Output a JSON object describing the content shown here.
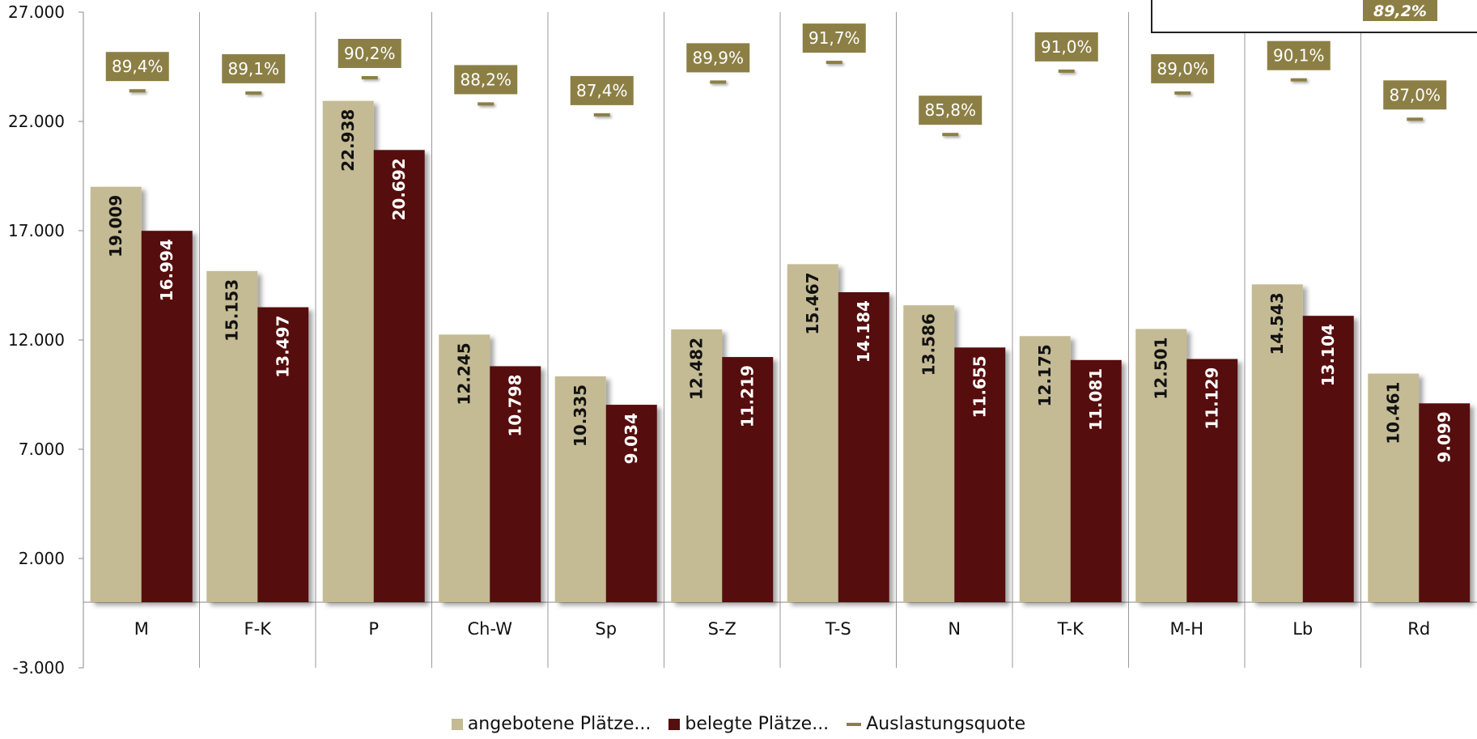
{
  "chart_data": {
    "type": "bar",
    "ylim": [
      -3000,
      27000
    ],
    "yticks": [
      -3000,
      2000,
      7000,
      12000,
      17000,
      22000,
      27000
    ],
    "ytick_labels": [
      "-3.000",
      "2.000",
      "7.000",
      "12.000",
      "17.000",
      "22.000",
      "27.000"
    ],
    "categories": [
      "M",
      "F-K",
      "P",
      "Ch-W",
      "Sp",
      "S-Z",
      "T-S",
      "N",
      "T-K",
      "M-H",
      "Lb",
      "Rd"
    ],
    "series": [
      {
        "name": "angebotene Plätze...",
        "type": "bar",
        "color": "#c4ba94",
        "values": [
          19009,
          15153,
          22938,
          12245,
          10335,
          12482,
          15467,
          13586,
          12175,
          12501,
          14543,
          10461
        ],
        "labels": [
          "19.009",
          "15.153",
          "22.938",
          "12.245",
          "10.335",
          "12.482",
          "15.467",
          "13.586",
          "12.175",
          "12.501",
          "14.543",
          "10.461"
        ]
      },
      {
        "name": "belegte Plätze...",
        "type": "bar",
        "color": "#560f0e",
        "values": [
          16994,
          13497,
          20692,
          10798,
          9034,
          11219,
          14184,
          11655,
          11081,
          11129,
          13104,
          9099
        ],
        "labels": [
          "16.994",
          "13.497",
          "20.692",
          "10.798",
          "9.034",
          "11.219",
          "14.184",
          "11.655",
          "11.081",
          "11.129",
          "13.104",
          "9.099"
        ]
      },
      {
        "name": "Auslastungsquote",
        "type": "line-marker",
        "color": "#8c7f45",
        "values": [
          89.4,
          89.1,
          90.2,
          88.2,
          87.4,
          89.9,
          91.7,
          85.8,
          91.0,
          89.0,
          90.1,
          87.0
        ],
        "labels": [
          "89,4%",
          "89,1%",
          "90,2%",
          "88,2%",
          "87,4%",
          "89,9%",
          "91,7%",
          "85,8%",
          "91,0%",
          "89,0%",
          "90,1%",
          "87,0%"
        ],
        "marker_y_data_units": [
          23400,
          23300,
          24000,
          22800,
          22300,
          23800,
          24700,
          21400,
          24300,
          23300,
          23900,
          22100
        ]
      }
    ],
    "inset_label": "89,2%",
    "grid": "vertical category separators",
    "legend_position": "bottom"
  }
}
